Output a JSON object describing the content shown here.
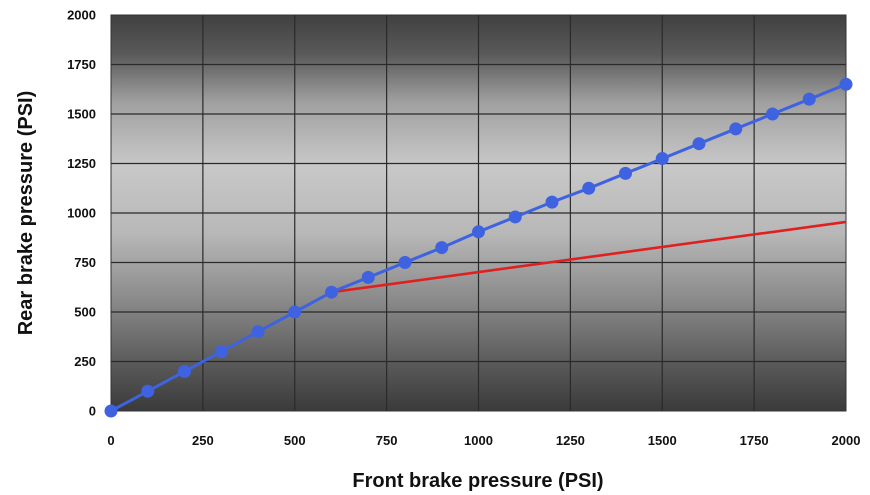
{
  "chart_data": {
    "type": "line",
    "title": "",
    "xlabel": "Front brake pressure (PSI)",
    "ylabel": "Rear brake pressure (PSI)",
    "xlim": [
      0,
      2000
    ],
    "ylim": [
      0,
      2000
    ],
    "xticks": [
      "0",
      "250",
      "500",
      "750",
      "1000",
      "1250",
      "1500",
      "1750",
      "2000"
    ],
    "yticks": [
      "0",
      "250",
      "500",
      "750",
      "1000",
      "1250",
      "1500",
      "1750",
      "2000"
    ],
    "grid": true,
    "legend": "none",
    "series": [
      {
        "color": "#3f63e0",
        "markers": true,
        "x": [
          0,
          100,
          200,
          300,
          400,
          500,
          600,
          700,
          800,
          900,
          1000,
          1100,
          1200,
          1300,
          1400,
          1500,
          1600,
          1700,
          1800,
          1900,
          2000
        ],
        "y": [
          0,
          100,
          200,
          300,
          400,
          500,
          600,
          675,
          750,
          825,
          905,
          980,
          1055,
          1125,
          1200,
          1275,
          1350,
          1425,
          1500,
          1575,
          1650
        ]
      },
      {
        "color": "#e02020",
        "markers": false,
        "x": [
          600,
          2000
        ],
        "y": [
          600,
          955
        ]
      }
    ]
  }
}
